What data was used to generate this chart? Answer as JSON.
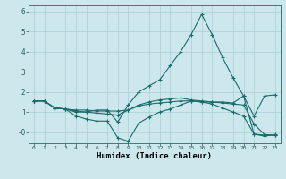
{
  "xlabel": "Humidex (Indice chaleur)",
  "bg_color": "#cce8ed",
  "grid_color": "#aacdd4",
  "line_color": "#1a6b6b",
  "xlim": [
    -0.5,
    23.5
  ],
  "ylim": [
    -0.55,
    6.3
  ],
  "xticks": [
    0,
    1,
    2,
    3,
    4,
    5,
    6,
    7,
    8,
    9,
    10,
    11,
    12,
    13,
    14,
    15,
    16,
    17,
    18,
    19,
    20,
    21,
    22,
    23
  ],
  "yticks": [
    0,
    1,
    2,
    3,
    4,
    5,
    6
  ],
  "ytick_labels": [
    "-0",
    "1",
    "2",
    "3",
    "4",
    "5",
    "6"
  ],
  "line1_x": [
    0,
    1,
    2,
    3,
    4,
    5,
    6,
    7,
    8,
    9,
    10,
    11,
    12,
    13,
    14,
    15,
    16,
    17,
    18,
    19,
    20,
    21,
    22,
    23
  ],
  "line1_y": [
    1.55,
    1.55,
    1.2,
    1.15,
    0.8,
    0.65,
    0.55,
    0.55,
    -0.28,
    -0.45,
    0.45,
    0.75,
    1.0,
    1.15,
    1.35,
    1.55,
    1.5,
    1.4,
    1.2,
    1.0,
    0.8,
    -0.1,
    -0.2,
    -0.12
  ],
  "line2_x": [
    0,
    1,
    2,
    3,
    4,
    5,
    6,
    7,
    8,
    9,
    10,
    11,
    12,
    13,
    14,
    15,
    16,
    17,
    18,
    19,
    20,
    21,
    22,
    23
  ],
  "line2_y": [
    1.55,
    1.55,
    1.2,
    1.15,
    1.05,
    1.0,
    0.95,
    0.9,
    0.85,
    1.1,
    1.35,
    1.5,
    1.6,
    1.65,
    1.7,
    1.6,
    1.55,
    1.5,
    1.45,
    1.4,
    1.35,
    0.4,
    -0.12,
    -0.15
  ],
  "line3_x": [
    0,
    1,
    2,
    3,
    4,
    5,
    6,
    7,
    8,
    9,
    10,
    11,
    12,
    13,
    14,
    15,
    16,
    17,
    18,
    19,
    20,
    21,
    22,
    23
  ],
  "line3_y": [
    1.55,
    1.55,
    1.2,
    1.15,
    1.1,
    1.1,
    1.05,
    1.05,
    1.05,
    1.1,
    1.3,
    1.4,
    1.45,
    1.5,
    1.55,
    1.55,
    1.5,
    1.5,
    1.5,
    1.45,
    1.8,
    -0.1,
    -0.15,
    -0.15
  ],
  "line4_x": [
    0,
    1,
    2,
    3,
    4,
    5,
    6,
    7,
    8,
    9,
    10,
    11,
    12,
    13,
    14,
    15,
    16,
    17,
    18,
    19,
    20,
    21,
    22,
    23
  ],
  "line4_y": [
    1.55,
    1.55,
    1.2,
    1.15,
    1.0,
    1.0,
    1.1,
    1.1,
    0.5,
    1.35,
    2.0,
    2.3,
    2.6,
    3.3,
    4.0,
    4.85,
    5.85,
    4.85,
    3.7,
    2.7,
    1.8,
    0.8,
    1.8,
    1.85
  ]
}
